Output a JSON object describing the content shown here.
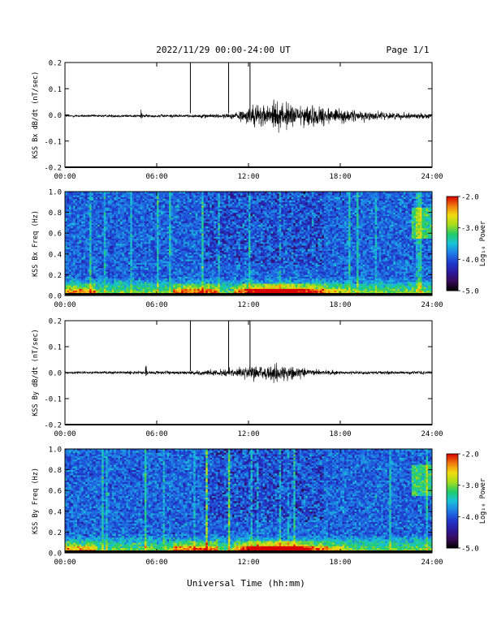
{
  "header": {
    "title": "2022/11/29  00:00-24:00 UT",
    "page": "Page 1/1"
  },
  "footer": {
    "xlabel": "Universal Time (hh:mm)"
  },
  "colors": {
    "trace": "#000000",
    "colormap": [
      "#000000",
      "#3a0a5a",
      "#2a1aa0",
      "#1f3cd0",
      "#1f7ee6",
      "#18c4d8",
      "#22cc66",
      "#a6dc1c",
      "#f2dc10",
      "#f07a10",
      "#d80000"
    ]
  },
  "chart_data": [
    {
      "type": "line",
      "ylabel": "KSS Bx dB/dt (nT/sec)",
      "xlim": [
        0,
        24
      ],
      "ylim": [
        -0.2,
        0.2
      ],
      "x_ticks": [
        "00:00",
        "06:00",
        "12:00",
        "18:00",
        "24:00"
      ],
      "y_ticks": [
        "0.2",
        "0.1",
        "0.0",
        "-0.1",
        "-0.2"
      ],
      "markers": [
        8.2,
        10.7,
        12.1
      ],
      "activity_envelope": {
        "x": [
          0,
          6,
          9,
          11,
          12.5,
          14.5,
          16.5,
          18,
          20,
          24
        ],
        "amp": [
          0.004,
          0.005,
          0.006,
          0.01,
          0.04,
          0.045,
          0.035,
          0.025,
          0.015,
          0.008
        ]
      }
    },
    {
      "type": "heatmap",
      "ylabel": "KSS Bx Freq (Hz)",
      "xlim": [
        0,
        24
      ],
      "ylim": [
        0,
        1.0
      ],
      "x_ticks": [
        "00:00",
        "06:00",
        "12:00",
        "18:00",
        "24:00"
      ],
      "y_ticks": [
        "1.0",
        "0.8",
        "0.6",
        "0.4",
        "0.2",
        "0.0"
      ],
      "colorbar": {
        "label": "Log₁₀ Power",
        "range": [
          -5.0,
          -2.0
        ],
        "ticks": [
          "-2.0",
          "-3.0",
          "-4.0",
          "-5.0"
        ]
      }
    },
    {
      "type": "line",
      "ylabel": "KSS By dB/dt (nT/sec)",
      "xlim": [
        0,
        24
      ],
      "ylim": [
        -0.2,
        0.2
      ],
      "x_ticks": [
        "00:00",
        "06:00",
        "12:00",
        "18:00",
        "24:00"
      ],
      "y_ticks": [
        "0.2",
        "0.1",
        "0.0",
        "-0.1",
        "-0.2"
      ],
      "markers": [
        8.2,
        10.7,
        12.1
      ],
      "activity_envelope": {
        "x": [
          0,
          5.5,
          8,
          10,
          12,
          13.5,
          15,
          16.5,
          18,
          24
        ],
        "amp": [
          0.004,
          0.006,
          0.007,
          0.01,
          0.022,
          0.03,
          0.02,
          0.01,
          0.006,
          0.005
        ]
      }
    },
    {
      "type": "heatmap",
      "ylabel": "KSS By Freq (Hz)",
      "xlim": [
        0,
        24
      ],
      "ylim": [
        0,
        1.0
      ],
      "x_ticks": [
        "00:00",
        "06:00",
        "12:00",
        "18:00",
        "24:00"
      ],
      "y_ticks": [
        "1.0",
        "0.8",
        "0.6",
        "0.4",
        "0.2",
        "0.0"
      ],
      "colorbar": {
        "label": "Log₁₀ Power",
        "range": [
          -5.0,
          -2.0
        ],
        "ticks": [
          "-2.0",
          "-3.0",
          "-4.0",
          "-5.0"
        ]
      }
    }
  ]
}
